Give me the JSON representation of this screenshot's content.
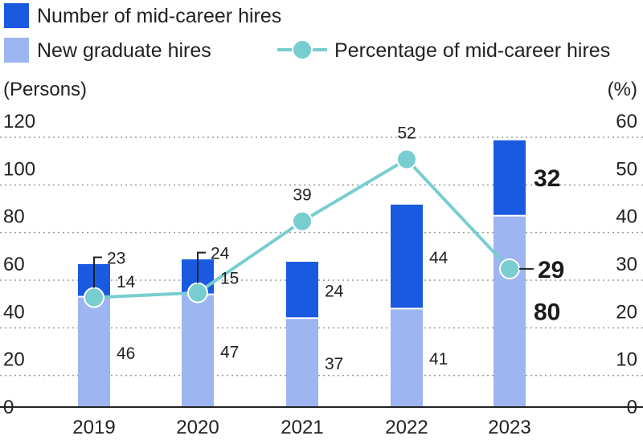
{
  "chart_data": {
    "type": "bar",
    "categories": [
      "2019",
      "2020",
      "2021",
      "2022",
      "2023"
    ],
    "series": [
      {
        "name": "New graduate hires",
        "kind": "stacked-bar",
        "values": [
          46,
          47,
          37,
          41,
          80
        ],
        "color": "#9db5f0"
      },
      {
        "name": "Number of mid-career hires",
        "kind": "stacked-bar",
        "values": [
          14,
          15,
          24,
          44,
          32
        ],
        "color": "#1a5ae0"
      },
      {
        "name": "Percentage of mid-career hires",
        "kind": "line",
        "axis": "right",
        "values": [
          23,
          24,
          39,
          52,
          29
        ],
        "color": "#78cdd0"
      }
    ],
    "ylabel_left": "(Persons)",
    "ylabel_right": "(%)",
    "ylim_left": [
      0,
      120
    ],
    "ylim_right": [
      0,
      60
    ],
    "yticks_left": [
      "0",
      "20",
      "40",
      "60",
      "80",
      "100",
      "120"
    ],
    "yticks_right": [
      "0",
      "10",
      "20",
      "30",
      "40",
      "50",
      "60"
    ],
    "grid": "dotted horizontal",
    "legend_position": "top"
  }
}
